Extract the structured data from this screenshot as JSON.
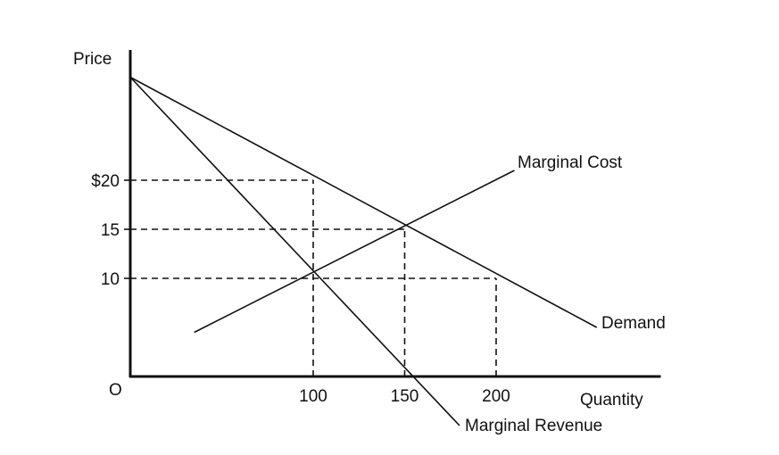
{
  "chart_data": {
    "type": "line",
    "title": "",
    "xlabel": "Quantity",
    "ylabel": "Price",
    "origin_label": "O",
    "xlim": [
      0,
      290
    ],
    "ylim": [
      0,
      31
    ],
    "grid": false,
    "legend": "none",
    "x_ticks": [
      {
        "value": 100,
        "label": "100"
      },
      {
        "value": 150,
        "label": "150"
      },
      {
        "value": 200,
        "label": "200"
      }
    ],
    "y_ticks": [
      {
        "value": 10,
        "label": "10"
      },
      {
        "value": 15,
        "label": "15"
      },
      {
        "value": 20,
        "label": "$20"
      }
    ],
    "series": [
      {
        "name": "Demand",
        "points": [
          [
            0,
            30.5
          ],
          [
            255,
            5
          ]
        ]
      },
      {
        "name": "Marginal Revenue",
        "points": [
          [
            0,
            30.5
          ],
          [
            180,
            -5
          ]
        ]
      },
      {
        "name": "Marginal Cost",
        "points": [
          [
            35,
            4.5
          ],
          [
            210,
            21
          ]
        ]
      }
    ],
    "guides": [
      {
        "from": [
          0,
          20
        ],
        "to": [
          100,
          20
        ]
      },
      {
        "from": [
          0,
          15
        ],
        "to": [
          150,
          15
        ]
      },
      {
        "from": [
          0,
          10
        ],
        "to": [
          200,
          10
        ]
      },
      {
        "from": [
          100,
          0
        ],
        "to": [
          100,
          20
        ]
      },
      {
        "from": [
          150,
          0
        ],
        "to": [
          150,
          15
        ]
      },
      {
        "from": [
          200,
          0
        ],
        "to": [
          200,
          10
        ]
      }
    ]
  }
}
